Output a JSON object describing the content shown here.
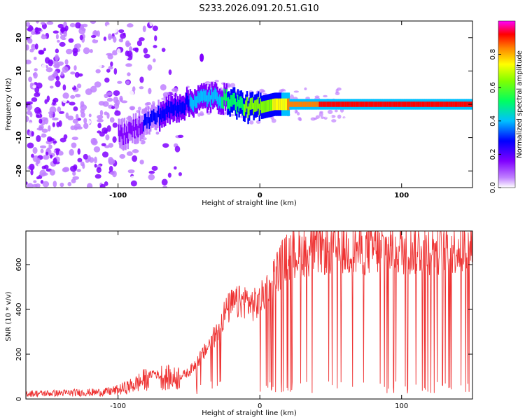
{
  "title": "S233.2026.091.20.51.G10",
  "chart_data": [
    {
      "type": "heatmap",
      "title": "S233.2026.091.20.51.G10",
      "xlabel": "Height of straight line (km)",
      "ylabel": "Frequency (Hz)",
      "xlim": [
        -165,
        150
      ],
      "ylim": [
        -25,
        25
      ],
      "xticks": [
        -100,
        0,
        100
      ],
      "xtick_labels": [
        "-100",
        "0",
        "100"
      ],
      "yticks": [
        -20,
        -10,
        0,
        10,
        20
      ],
      "ytick_labels": [
        "-20",
        "-10",
        "0",
        "10",
        "20"
      ],
      "colorbar": {
        "label": "Normalized spectral amplitude",
        "range": [
          0,
          1
        ],
        "ticks": [
          0.0,
          0.2,
          0.4,
          0.6,
          0.8
        ],
        "tick_labels": [
          "0.0",
          "0.2",
          "0.4",
          "0.6",
          "0.8"
        ],
        "colors": [
          "#ffffff",
          "#8000ff",
          "#0000ff",
          "#00c0ff",
          "#00ff00",
          "#ffff00",
          "#ff0000",
          "#ff00ff"
        ]
      },
      "description_ridge": {
        "x": [
          -95,
          -80,
          -60,
          -40,
          -30,
          -20,
          -10,
          0,
          10,
          20,
          50,
          150
        ],
        "freq_hz": [
          -9,
          -5,
          -1,
          2,
          2,
          1,
          -1,
          -1,
          0,
          0,
          0,
          0
        ],
        "amplitude": [
          0.2,
          0.3,
          0.35,
          0.45,
          0.5,
          0.6,
          0.65,
          0.7,
          0.75,
          0.85,
          0.95,
          0.95
        ]
      }
    },
    {
      "type": "line",
      "xlabel": "Height of straight line (km)",
      "ylabel": "SNR (10 * v/v)",
      "xlim": [
        -165,
        150
      ],
      "ylim": [
        0,
        750
      ],
      "xticks": [
        -100,
        0,
        100
      ],
      "xtick_labels": [
        "-100",
        "0",
        "100"
      ],
      "yticks": [
        0,
        200,
        400,
        600
      ],
      "ytick_labels": [
        "0",
        "200",
        "400",
        "600"
      ],
      "color": "#ee3333",
      "series": [
        {
          "name": "SNR",
          "x": [
            -165,
            -150,
            -130,
            -110,
            -100,
            -90,
            -80,
            -75,
            -70,
            -60,
            -50,
            -40,
            -35,
            -30,
            -25,
            -20,
            -15,
            -10,
            -5,
            0,
            5,
            10,
            15,
            20,
            30,
            40,
            50,
            60,
            80,
            100,
            120,
            140,
            150
          ],
          "values": [
            25,
            25,
            28,
            30,
            40,
            60,
            90,
            120,
            100,
            90,
            120,
            200,
            250,
            300,
            380,
            420,
            430,
            440,
            420,
            430,
            500,
            550,
            600,
            640,
            660,
            670,
            670,
            665,
            670,
            670,
            672,
            675,
            670
          ]
        }
      ],
      "dropout_start_x": 0
    }
  ]
}
